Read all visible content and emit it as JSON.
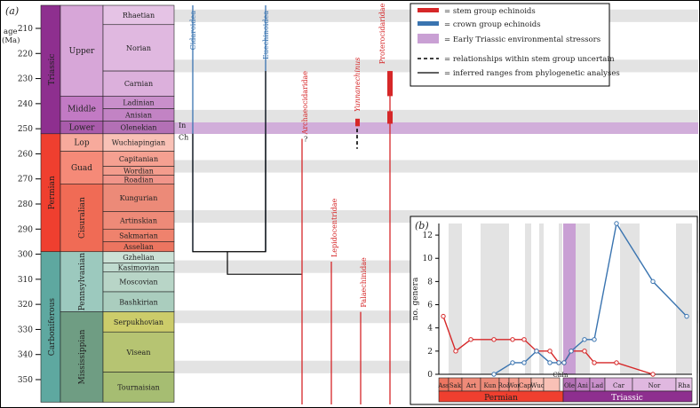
{
  "panel_a": {
    "label": "(a)",
    "axis_label": "age\n(Ma)",
    "age_ticks": [
      "210",
      "220",
      "230",
      "240",
      "250",
      "260",
      "270",
      "280",
      "290",
      "300",
      "310",
      "320",
      "330",
      "340",
      "350"
    ],
    "periods": [
      "Triassic",
      "Permian",
      "Carboniferous"
    ],
    "epochs": [
      "Upper",
      "Middle",
      "Lower",
      "Lop",
      "Guad",
      "Cisuralian",
      "Pennsylvanian",
      "Mississippian"
    ],
    "stages": [
      "Rhaetian",
      "Norian",
      "Carnian",
      "Ladinian",
      "Anisian",
      "Olenekian",
      "Wuchiapingian",
      "Capitanian",
      "Wordian",
      "Roadian",
      "Kungurian",
      "Artinskian",
      "Sakmarian",
      "Asselian",
      "Gzhelian",
      "Kasimovian",
      "Moscovian",
      "Bashkirian",
      "Serpukhovian",
      "Visean",
      "Tournaisian"
    ],
    "substage_marks": [
      "In",
      "Ch"
    ],
    "taxa": [
      "Cidaroidea",
      "Euechinoidea",
      "Archaeocidaridae",
      "Lepidocentridae",
      "Palaechinidae",
      "Yunnanechinus",
      "Proterocidaridae"
    ],
    "question_mark": "?",
    "legend": {
      "stem": "= stem group echinoids",
      "crown": "= crown group echinoids",
      "stress": "= Early Triassic environmental stressors",
      "dashed": "= relationships within stem group uncertain",
      "solid": "= inferred ranges from phylogenetic analyses"
    },
    "colors": {
      "stem": "#d62728",
      "crown": "#3a74b0",
      "stress": "#c9a0d4",
      "triassic": "#8e2f8f",
      "permian": "#ef3f2f",
      "carboniferous": "#5ea8a0"
    }
  },
  "panel_b": {
    "label": "(b)",
    "ylabel": "no. genera",
    "yticks": [
      "0",
      "2",
      "4",
      "6",
      "8",
      "10",
      "12"
    ],
    "x_stages": [
      "Ass",
      "Sak",
      "Art",
      "Kun",
      "Roa",
      "Wor",
      "Cap",
      "Wuc",
      "Ole",
      "Ani",
      "Lad",
      "Car",
      "Nor",
      "Rha"
    ],
    "chin_label": "ChIn",
    "periods": [
      "Permian",
      "Triassic"
    ],
    "chart_data": {
      "type": "line",
      "ylim": [
        0,
        13
      ],
      "ylabel": "no. genera",
      "categories": [
        "Ass",
        "Sak",
        "Art",
        "Kun",
        "Roa",
        "Wor",
        "Cap",
        "Wuc",
        "Ch",
        "In",
        "Ole",
        "Ani",
        "Lad",
        "Car",
        "Nor",
        "Rha"
      ],
      "series": [
        {
          "name": "stem group echinoids",
          "color": "#d62728",
          "values": [
            5,
            2,
            3,
            3,
            3,
            3,
            2,
            2,
            1,
            1,
            2,
            2,
            1,
            1,
            0,
            null
          ]
        },
        {
          "name": "crown group echinoids",
          "color": "#3a74b0",
          "values": [
            null,
            null,
            null,
            0,
            1,
            1,
            2,
            1,
            1,
            1,
            2,
            3,
            3,
            13,
            8,
            5
          ]
        }
      ]
    }
  }
}
